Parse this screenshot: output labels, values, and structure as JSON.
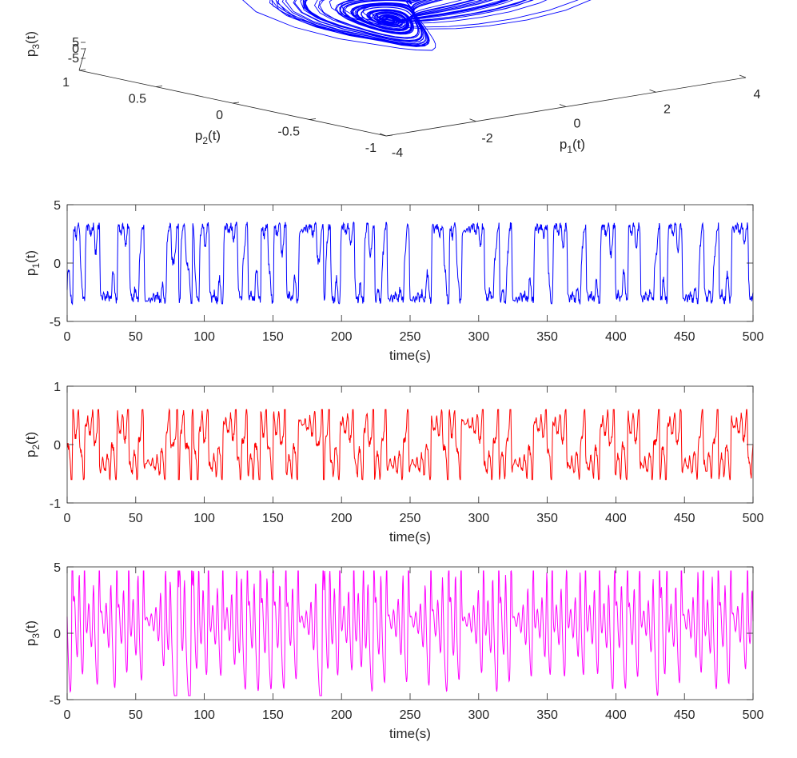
{
  "chart_data": [
    {
      "type": "line",
      "projection": "3d",
      "series": [
        {
          "color": "#0000ff"
        }
      ],
      "xlabel": {
        "var": "p",
        "sub": "1",
        "arg": "(t)"
      },
      "ylabel": {
        "var": "p",
        "sub": "2",
        "arg": "(t)"
      },
      "zlabel": {
        "var": "p",
        "sub": "3",
        "arg": "(t)"
      },
      "xlim": [
        -4,
        4
      ],
      "ylim": [
        -1,
        1
      ],
      "zlim": [
        -5,
        5
      ],
      "xticks": [
        "-4",
        "-2",
        "0",
        "2",
        "4"
      ],
      "yticks": [
        "-1",
        "-0.5",
        "0",
        "0.5",
        "1"
      ],
      "zticks": [
        "-5",
        "0",
        "5"
      ],
      "grid": false
    },
    {
      "type": "line",
      "series": [
        {
          "color": "#0000ff"
        }
      ],
      "xlabel": "time(s)",
      "ylabel": {
        "var": "p",
        "sub": "1",
        "arg": "(t)"
      },
      "xlim": [
        0,
        500
      ],
      "ylim": [
        -5,
        5
      ],
      "xticks": [
        "0",
        "50",
        "100",
        "150",
        "200",
        "250",
        "300",
        "350",
        "400",
        "450",
        "500"
      ],
      "yticks": [
        "-5",
        "0",
        "5"
      ],
      "grid": false
    },
    {
      "type": "line",
      "series": [
        {
          "color": "#ff0000"
        }
      ],
      "xlabel": "time(s)",
      "ylabel": {
        "var": "p",
        "sub": "2",
        "arg": "(t)"
      },
      "xlim": [
        0,
        500
      ],
      "ylim": [
        -1,
        1
      ],
      "xticks": [
        "0",
        "50",
        "100",
        "150",
        "200",
        "250",
        "300",
        "350",
        "400",
        "450",
        "500"
      ],
      "yticks": [
        "-1",
        "0",
        "1"
      ],
      "grid": false
    },
    {
      "type": "line",
      "series": [
        {
          "color": "#ff00ff"
        }
      ],
      "xlabel": "time(s)",
      "ylabel": {
        "var": "p",
        "sub": "3",
        "arg": "(t)"
      },
      "xlim": [
        0,
        500
      ],
      "ylim": [
        -5,
        5
      ],
      "xticks": [
        "0",
        "50",
        "100",
        "150",
        "200",
        "250",
        "300",
        "350",
        "400",
        "450",
        "500"
      ],
      "yticks": [
        "-5",
        "0",
        "5"
      ],
      "grid": false
    }
  ]
}
